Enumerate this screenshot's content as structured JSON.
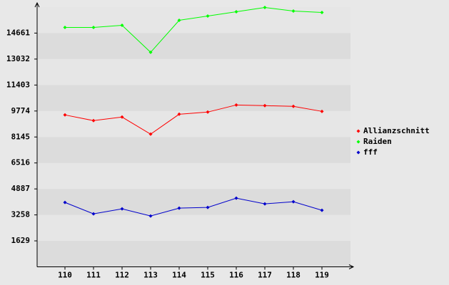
{
  "chart_data": {
    "type": "line",
    "categories": [
      "110",
      "111",
      "112",
      "113",
      "114",
      "115",
      "116",
      "117",
      "118",
      "119"
    ],
    "series": [
      {
        "name": "Allianzschnitt",
        "color": "#ff0000",
        "values": [
          9528,
          9171,
          9394,
          8323,
          9573,
          9707,
          10153,
          10109,
          10064,
          9751
        ]
      },
      {
        "name": "Raiden",
        "color": "#00ff00",
        "values": [
          15018,
          15018,
          15152,
          13456,
          15464,
          15732,
          15999,
          16267,
          16044,
          15955
        ]
      },
      {
        "name": "fff",
        "color": "#0000cc",
        "values": [
          4039,
          3325,
          3637,
          3191,
          3682,
          3727,
          4307,
          3950,
          4084,
          3548
        ]
      }
    ],
    "ylim": [
      0,
      16290
    ],
    "yticks": [
      1629,
      3258,
      4887,
      6516,
      8145,
      9774,
      11403,
      13032,
      14661
    ],
    "grid": true
  }
}
